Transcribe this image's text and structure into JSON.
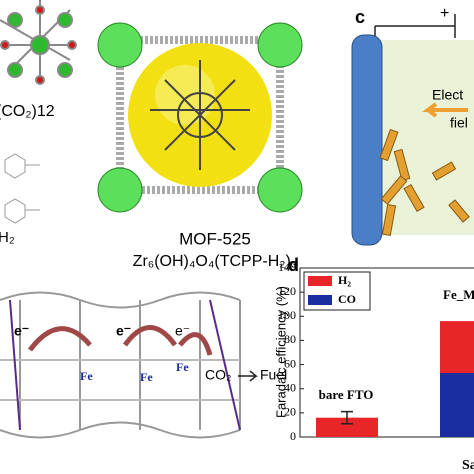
{
  "figure": {
    "panel_a": {
      "formula_fragment": "(CO₂)12",
      "ligand_fragment": "H₂"
    },
    "panel_b": {
      "name": "MOF-525",
      "formula": "Zr₆(OH)₄O₄(TCPP-H₂)₃"
    },
    "panel_c": {
      "label": "c",
      "polarity": "+",
      "field_text_1": "Elect",
      "field_text_2": "fiel"
    },
    "panel_e": {
      "electrons": [
        "e⁻",
        "e⁻",
        "e⁻"
      ],
      "metal_labels": [
        "Fe",
        "Fe",
        "Fe"
      ],
      "reactant": "CO₂",
      "product": "Fuel"
    }
  },
  "chart_data": {
    "type": "bar",
    "stacked": true,
    "panel_label": "d",
    "ylabel": "Faradaic efficiency (%)",
    "xlabel": "Sa",
    "categories": [
      "bare FTO",
      "Fe_M"
    ],
    "series": [
      {
        "name": "H₂",
        "color": "#e8262a",
        "values": [
          16,
          43
        ],
        "errors": [
          5,
          null
        ]
      },
      {
        "name": "CO",
        "color": "#1a2ea0",
        "values": [
          0,
          53
        ]
      }
    ],
    "ylim": [
      0,
      140
    ],
    "yticks": [
      0,
      20,
      40,
      60,
      80,
      100,
      120,
      140
    ]
  }
}
